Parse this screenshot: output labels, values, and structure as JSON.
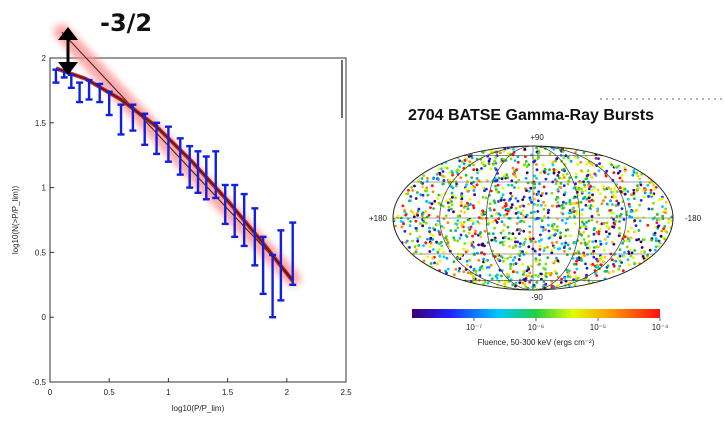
{
  "colors": {
    "errorbar": "#1020e0",
    "fit_line": "#222222",
    "fit_curve": "#cc1010",
    "glow": "#ff8a8a",
    "arrow": "#000000"
  },
  "chart_data": [
    {
      "type": "line",
      "title": "",
      "xlabel": "log10(P/P_lim)",
      "ylabel": "log10(N(>P/P_lim))",
      "xlim": [
        0,
        2.5
      ],
      "ylim": [
        -0.5,
        2
      ],
      "x_ticks": [
        "0",
        "0.5",
        "1",
        "1.5",
        "2",
        "2.5"
      ],
      "y_ticks": [
        "-0.5",
        "0",
        "0.5",
        "1",
        "1.5",
        "2"
      ],
      "annotation": "-3/2",
      "reference_line": {
        "slope": -1.5,
        "points": [
          [
            0.1,
            2.2
          ],
          [
            2.05,
            0.3
          ]
        ]
      },
      "fit_curve": {
        "x": [
          0.05,
          0.3,
          0.6,
          0.9,
          1.2,
          1.5,
          1.8,
          2.05
        ],
        "y": [
          1.92,
          1.84,
          1.68,
          1.47,
          1.2,
          0.9,
          0.57,
          0.28
        ]
      },
      "series": [
        {
          "x": [
            0.05,
            0.12,
            0.18,
            0.25,
            0.33,
            0.42,
            0.5,
            0.6,
            0.7,
            0.8,
            0.9,
            1.0,
            1.1,
            1.18,
            1.25,
            1.32,
            1.4,
            1.48,
            1.56,
            1.64,
            1.73,
            1.8,
            1.88,
            1.95,
            2.05
          ],
          "y": [
            1.86,
            1.9,
            1.82,
            1.74,
            1.76,
            1.73,
            1.66,
            1.56,
            1.54,
            1.45,
            1.38,
            1.35,
            1.26,
            1.16,
            1.12,
            1.09,
            1.1,
            0.87,
            0.82,
            0.75,
            0.62,
            0.4,
            0.28,
            0.45,
            0.55
          ],
          "err_low": [
            0.05,
            0.05,
            0.05,
            0.08,
            0.08,
            0.07,
            0.1,
            0.15,
            0.1,
            0.12,
            0.12,
            0.15,
            0.16,
            0.16,
            0.16,
            0.18,
            0.18,
            0.15,
            0.2,
            0.2,
            0.22,
            0.22,
            0.28,
            0.32,
            0.3
          ],
          "err_high": [
            0.05,
            0.05,
            0.05,
            0.07,
            0.07,
            0.07,
            0.08,
            0.08,
            0.1,
            0.12,
            0.12,
            0.12,
            0.12,
            0.16,
            0.16,
            0.15,
            0.18,
            0.15,
            0.2,
            0.2,
            0.22,
            0.22,
            0.2,
            0.22,
            0.18
          ]
        }
      ]
    },
    {
      "type": "scatter",
      "title": "2704 BATSE Gamma-Ray Bursts",
      "projection": "aitoff",
      "coord_labels": {
        "top": "+90",
        "bottom": "-90",
        "left": "+180",
        "right": "-180"
      },
      "colorbar": {
        "label": "Fluence, 50-300 keV (ergs cm⁻²)",
        "scale": "log",
        "range": [
          1e-08,
          0.0001
        ],
        "ticks": [
          "10⁻⁷",
          "10⁻⁶",
          "10⁻⁵",
          "10⁻⁴"
        ]
      },
      "n_bursts": 2704
    }
  ]
}
